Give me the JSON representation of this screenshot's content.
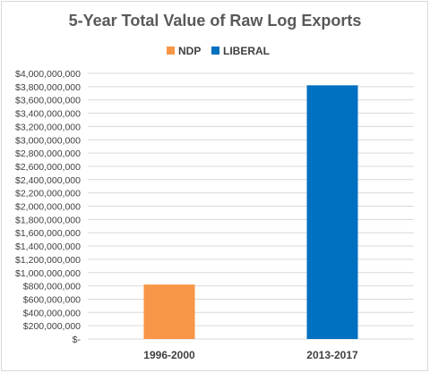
{
  "chart_data": {
    "type": "bar",
    "title": "5-Year Total Value of Raw Log Exports",
    "categories": [
      "1996-2000",
      "2013-2017"
    ],
    "series": [
      {
        "name": "NDP",
        "color": "#f79646",
        "values": [
          820000000,
          null
        ]
      },
      {
        "name": "LIBERAL",
        "color": "#0070c0",
        "values": [
          null,
          3820000000
        ]
      }
    ],
    "ylim": [
      0,
      4000000000
    ],
    "y_ticks": [
      {
        "value": 4000000000,
        "label": "$4,000,000,000"
      },
      {
        "value": 3800000000,
        "label": "$3,800,000,000"
      },
      {
        "value": 3600000000,
        "label": "$3,600,000,000"
      },
      {
        "value": 3400000000,
        "label": "$3,400,000,000"
      },
      {
        "value": 3200000000,
        "label": "$3,200,000,000"
      },
      {
        "value": 3000000000,
        "label": "$3,000,000,000"
      },
      {
        "value": 2800000000,
        "label": "$2,800,000,000"
      },
      {
        "value": 2600000000,
        "label": "$2,600,000,000"
      },
      {
        "value": 2400000000,
        "label": "$2,400,000,000"
      },
      {
        "value": 2200000000,
        "label": "$2,200,000,000"
      },
      {
        "value": 2000000000,
        "label": "$2,000,000,000"
      },
      {
        "value": 1800000000,
        "label": "$1,800,000,000"
      },
      {
        "value": 1600000000,
        "label": "$1,600,000,000"
      },
      {
        "value": 1400000000,
        "label": "$1,400,000,000"
      },
      {
        "value": 1200000000,
        "label": "$1,200,000,000"
      },
      {
        "value": 1000000000,
        "label": "$1,000,000,000"
      },
      {
        "value": 800000000,
        "label": "$800,000,000"
      },
      {
        "value": 600000000,
        "label": "$600,000,000"
      },
      {
        "value": 400000000,
        "label": "$400,000,000"
      },
      {
        "value": 200000000,
        "label": "$200,000,000"
      },
      {
        "value": 0,
        "label": "$-"
      }
    ],
    "grid": true,
    "legend_position": "top"
  }
}
